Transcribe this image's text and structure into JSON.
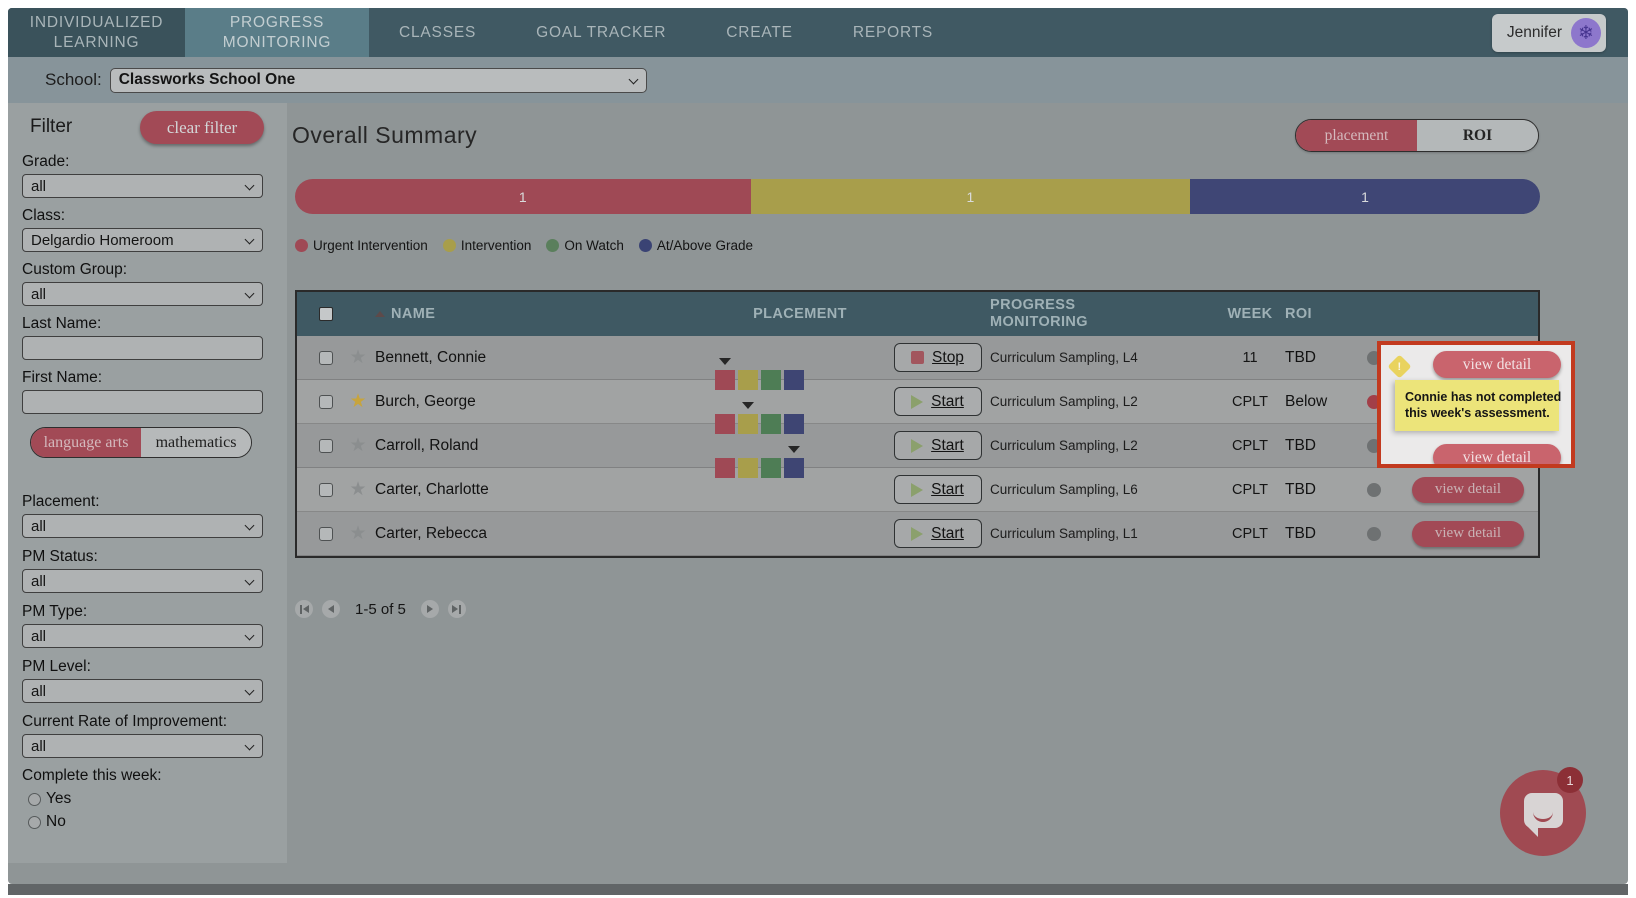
{
  "nav": {
    "tabs": [
      {
        "label": "INDIVIDUALIZED LEARNING",
        "active": false,
        "first": true
      },
      {
        "label": "PROGRESS MONITORING",
        "active": true,
        "first": false
      },
      {
        "label": "CLASSES",
        "active": false,
        "first": false
      },
      {
        "label": "GOAL TRACKER",
        "active": false,
        "first": false
      },
      {
        "label": "CREATE",
        "active": false,
        "first": false
      },
      {
        "label": "REPORTS",
        "active": false,
        "first": false
      }
    ],
    "user_name": "Jennifer"
  },
  "school_bar": {
    "label": "School:",
    "value": "Classworks School One"
  },
  "sidebar": {
    "title": "Filter",
    "clear_button": "clear filter",
    "grade_label": "Grade:",
    "grade_value": "all",
    "class_label": "Class:",
    "class_value": "Delgardio Homeroom",
    "custom_group_label": "Custom Group:",
    "custom_group_value": "all",
    "last_name_label": "Last Name:",
    "first_name_label": "First Name:",
    "subjects": [
      {
        "label": "language arts",
        "active": true
      },
      {
        "label": "mathematics",
        "active": false
      }
    ],
    "placement_label": "Placement:",
    "placement_value": "all",
    "pm_status_label": "PM Status:",
    "pm_status_value": "all",
    "pm_type_label": "PM Type:",
    "pm_type_value": "all",
    "pm_level_label": "PM Level:",
    "pm_level_value": "all",
    "roi_label": "Current Rate of Improvement:",
    "roi_value": "all",
    "complete_label": "Complete this week:",
    "complete_options": [
      {
        "label": "Yes"
      },
      {
        "label": "No"
      }
    ]
  },
  "summary": {
    "title": "Overall Summary",
    "view_toggle": [
      {
        "label": "placement",
        "active": true
      },
      {
        "label": "ROI",
        "active": false
      }
    ],
    "chart_data": {
      "type": "bar",
      "categories": [
        "Urgent Intervention",
        "Intervention",
        "At/Above Grade"
      ],
      "values": [
        1,
        1,
        1
      ]
    },
    "bar_segments": [
      {
        "name": "Urgent Intervention",
        "count": "1",
        "width": "36.6%",
        "color": "#9f4955"
      },
      {
        "name": "Intervention",
        "count": "1",
        "width": "35.3%",
        "color": "#a89e4b"
      },
      {
        "name": "At/Above Grade",
        "count": "1",
        "width": "28.1%",
        "color": "#3f4675"
      }
    ],
    "legend": [
      {
        "label": "Urgent Intervention",
        "color": "#9f4955"
      },
      {
        "label": "Intervention",
        "color": "#a89e4b"
      },
      {
        "label": "On Watch",
        "color": "#5a7f5c"
      },
      {
        "label": "At/Above Grade",
        "color": "#3a4374"
      }
    ]
  },
  "table": {
    "headers": {
      "name": "NAME",
      "placement": "PLACEMENT",
      "pm": "PROGRESS MONITORING",
      "week": "WEEK",
      "roi": "ROI"
    },
    "placement_colors": [
      "#9f4955",
      "#a89e4b",
      "#4e7d55",
      "#3e4573"
    ],
    "view_detail_label": "view detail",
    "rows": [
      {
        "name": "Bennett, Connie",
        "starred": false,
        "has_placement": true,
        "marker": 1,
        "action_label": "Stop",
        "is_stop": true,
        "is_start": false,
        "pm": "Curriculum Sampling, L4",
        "week": "11",
        "roi": "TBD",
        "dot_color": "#6e7172"
      },
      {
        "name": "Burch, George",
        "starred": true,
        "has_placement": true,
        "marker": 2,
        "action_label": "Start",
        "is_stop": false,
        "is_start": true,
        "pm": "Curriculum Sampling, L2",
        "week": "CPLT",
        "roi": "Below",
        "dot_color": "#a23f48"
      },
      {
        "name": "Carroll, Roland",
        "starred": false,
        "has_placement": true,
        "marker": 4,
        "action_label": "Start",
        "is_stop": false,
        "is_start": true,
        "pm": "Curriculum Sampling, L2",
        "week": "CPLT",
        "roi": "TBD",
        "dot_color": "#6e7172"
      },
      {
        "name": "Carter, Charlotte",
        "starred": false,
        "has_placement": false,
        "marker": 0,
        "action_label": "Start",
        "is_stop": false,
        "is_start": true,
        "pm": "Curriculum Sampling, L6",
        "week": "CPLT",
        "roi": "TBD",
        "dot_color": "#6e7172"
      },
      {
        "name": "Carter, Rebecca",
        "starred": false,
        "has_placement": false,
        "marker": 0,
        "action_label": "Start",
        "is_stop": false,
        "is_start": true,
        "pm": "Curriculum Sampling, L1",
        "week": "CPLT",
        "roi": "TBD",
        "dot_color": "#6e7172"
      }
    ]
  },
  "pagination": {
    "text": "1-5 of 5"
  },
  "spotlight": {
    "warning_glyph": "!",
    "tooltip_line1": "Connie has not completed",
    "tooltip_line2": "this week's assessment.",
    "highlight_color": "#c23a1f"
  },
  "chat": {
    "badge": "1"
  }
}
